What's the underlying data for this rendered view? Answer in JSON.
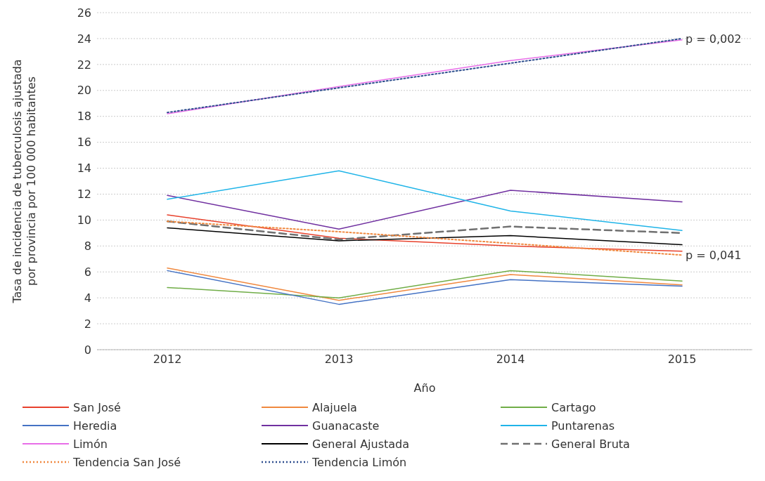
{
  "chart_data": {
    "type": "line",
    "xlabel": "Año",
    "ylabel": "Tasa de incidencia de tuberculosis ajustada por provincia por 100 000 habitantes",
    "categories": [
      "2012",
      "2013",
      "2014",
      "2015"
    ],
    "ylim": [
      0,
      26
    ],
    "yticks": [
      0,
      2,
      4,
      6,
      8,
      10,
      12,
      14,
      16,
      18,
      20,
      22,
      24,
      26
    ],
    "grid": "y",
    "legend": "bottom",
    "marker": "none",
    "series": [
      {
        "name": "San José",
        "color": "#e8412c",
        "values": [
          10.4,
          8.6,
          8.0,
          7.6
        ]
      },
      {
        "name": "Alajuela",
        "color": "#f0883e",
        "values": [
          6.3,
          3.8,
          5.8,
          5.0
        ]
      },
      {
        "name": "Cartago",
        "color": "#70ad47",
        "values": [
          4.8,
          4.0,
          6.1,
          5.3
        ]
      },
      {
        "name": "Heredia",
        "color": "#4472c4",
        "values": [
          6.1,
          3.5,
          5.4,
          4.9
        ]
      },
      {
        "name": "Guanacaste",
        "color": "#7030a0",
        "values": [
          11.9,
          9.3,
          12.3,
          11.4
        ]
      },
      {
        "name": "Puntarenas",
        "color": "#1fb4e8",
        "values": [
          11.6,
          13.8,
          10.7,
          9.2
        ]
      },
      {
        "name": "Limón",
        "color": "#e86ee8",
        "values": [
          18.2,
          20.3,
          22.3,
          23.9
        ]
      },
      {
        "name": "General Ajustada",
        "color": "#000000",
        "values": [
          9.4,
          8.4,
          8.8,
          8.1
        ]
      },
      {
        "name": "General Bruta",
        "color": "#707070",
        "line_style": "dashed",
        "values": [
          9.9,
          8.5,
          9.5,
          9.0
        ]
      },
      {
        "name": "Tendencia San José",
        "color": "#f0883e",
        "line_style": "dotted",
        "values": [
          9.9,
          9.1,
          8.2,
          7.3
        ]
      },
      {
        "name": "Tendencia Limón",
        "color": "#2f4f8f",
        "line_style": "dotted",
        "values": [
          18.3,
          20.2,
          22.1,
          24.0
        ]
      }
    ],
    "annotations": [
      {
        "text": "p = 0,002",
        "x": "2015",
        "y": 24.0
      },
      {
        "text": "p = 0,041",
        "x": "2015",
        "y": 7.3
      }
    ]
  }
}
